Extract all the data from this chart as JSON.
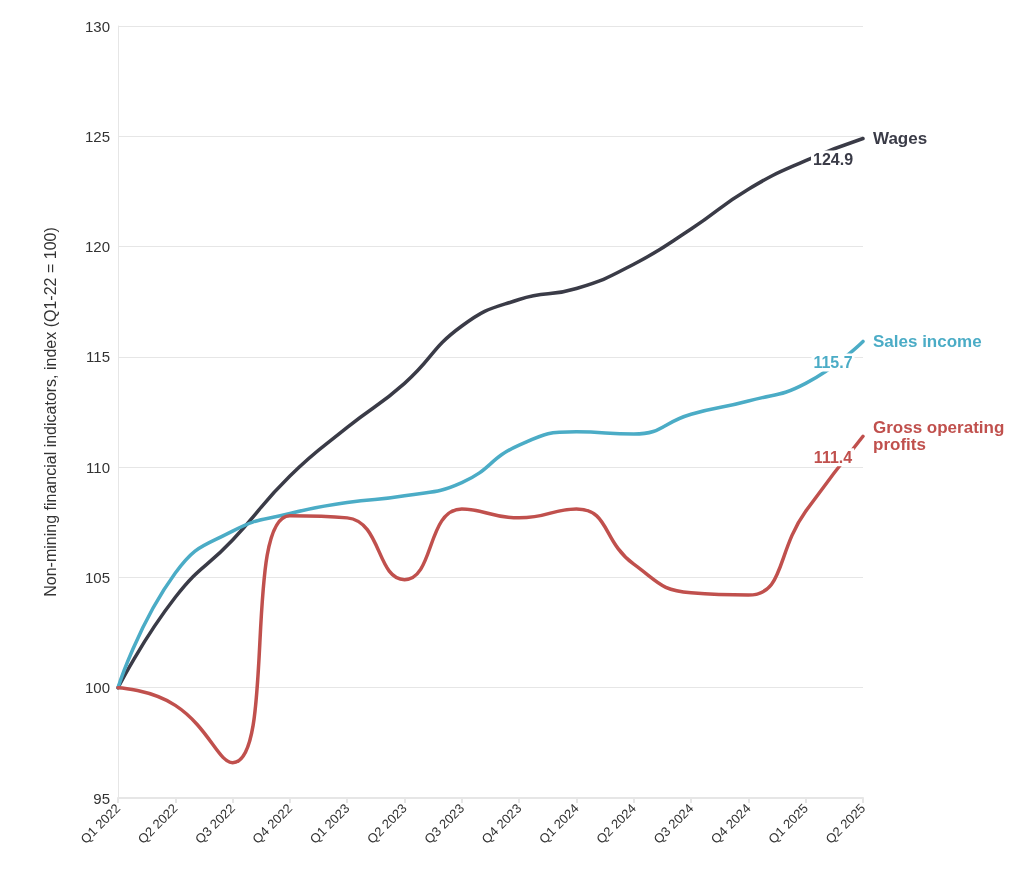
{
  "chart_data": {
    "type": "line",
    "ylabel": "Non-mining financial indicators, index (Q1-22 = 100)",
    "categories": [
      "Q1 2022",
      "Q2 2022",
      "Q3 2022",
      "Q4 2022",
      "Q1 2023",
      "Q2 2023",
      "Q3 2023",
      "Q4 2023",
      "Q1 2024",
      "Q2 2024",
      "Q3 2024",
      "Q4 2024",
      "Q1 2025",
      "Q2 2025"
    ],
    "series": [
      {
        "name": "Wages",
        "color": "#3a3b47",
        "values": [
          100,
          104.1,
          106.7,
          109.6,
          111.8,
          113.8,
          116.4,
          117.6,
          118.1,
          119.2,
          120.8,
          122.6,
          123.9,
          124.9
        ],
        "value_labels": [
          null,
          null,
          null,
          null,
          null,
          null,
          null,
          null,
          null,
          null,
          null,
          null,
          null,
          "124.9"
        ]
      },
      {
        "name": "Sales income",
        "color": "#4bacc6",
        "values": [
          100,
          105.2,
          107.1,
          107.9,
          108.4,
          108.7,
          109.3,
          111.0,
          111.6,
          111.5,
          112.4,
          113.0,
          113.8,
          115.7
        ],
        "value_labels": [
          null,
          null,
          null,
          null,
          null,
          null,
          null,
          null,
          null,
          null,
          null,
          null,
          null,
          "115.7"
        ]
      },
      {
        "name": "Gross operating profits",
        "color": "#c0504d",
        "values": [
          100,
          99.2,
          96.6,
          107.8,
          107.7,
          104.9,
          108.1,
          107.7,
          108.1,
          105.6,
          104.3,
          104.2,
          108.0,
          111.4
        ],
        "value_labels": [
          null,
          null,
          null,
          null,
          null,
          null,
          null,
          null,
          null,
          null,
          null,
          null,
          null,
          "111.4"
        ]
      }
    ],
    "ylim": [
      95,
      130
    ],
    "yticks": [
      95,
      100,
      105,
      110,
      115,
      120,
      125,
      130
    ],
    "grid": "y",
    "legend": false,
    "marker": "none",
    "line_style": "solid"
  }
}
